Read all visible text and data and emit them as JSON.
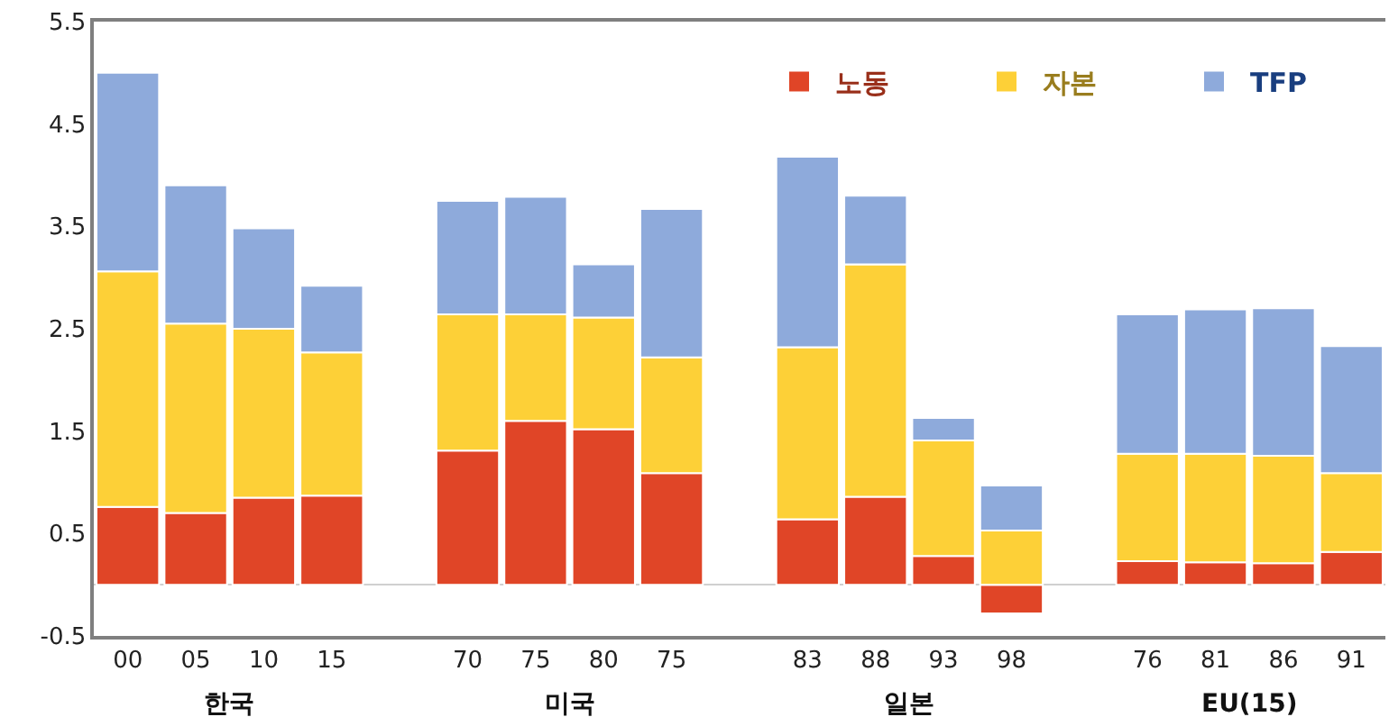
{
  "chart_data": {
    "type": "bar",
    "stacked": true,
    "categories": [
      "00",
      "05",
      "10",
      "15",
      null,
      "70",
      "75",
      "80",
      "75",
      null,
      "83",
      "88",
      "93",
      "98",
      null,
      "76",
      "81",
      "86",
      "91"
    ],
    "series": [
      {
        "name": "노동",
        "color": "#e04527",
        "values": [
          0.76,
          0.7,
          0.85,
          0.87,
          null,
          1.31,
          1.6,
          1.52,
          1.09,
          null,
          0.64,
          0.86,
          0.28,
          -0.28,
          null,
          0.23,
          0.22,
          0.21,
          0.32
        ]
      },
      {
        "name": "자본",
        "color": "#fdd037",
        "values": [
          2.3,
          1.85,
          1.65,
          1.4,
          null,
          1.33,
          1.04,
          1.09,
          1.13,
          null,
          1.68,
          2.27,
          1.13,
          0.53,
          null,
          1.05,
          1.06,
          1.05,
          0.77
        ]
      },
      {
        "name": "TFP",
        "color": "#8eaadb",
        "values": [
          1.94,
          1.35,
          0.98,
          0.65,
          null,
          1.11,
          1.15,
          0.52,
          1.45,
          null,
          1.86,
          0.67,
          0.22,
          0.44,
          null,
          1.36,
          1.41,
          1.44,
          1.24
        ]
      }
    ],
    "ylim": [
      -0.5,
      5.5
    ],
    "yticks": [
      -0.5,
      0.5,
      1.5,
      2.5,
      3.5,
      4.5,
      5.5
    ],
    "legend": "top right",
    "annotations": [
      "한국",
      "미국",
      "일본",
      "EU(15)"
    ]
  }
}
